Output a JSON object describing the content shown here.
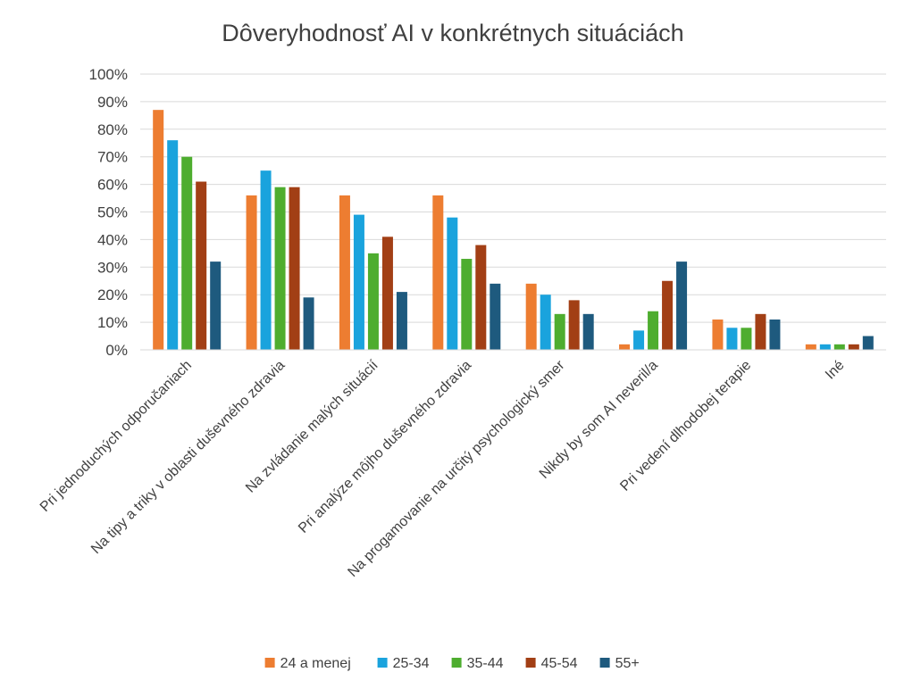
{
  "chart_data": {
    "type": "bar",
    "title": "Dôveryhodnosť AI v konkrétnych situáciách",
    "ylim": [
      0,
      100
    ],
    "y_ticks": [
      "0%",
      "10%",
      "20%",
      "30%",
      "40%",
      "50%",
      "60%",
      "70%",
      "80%",
      "90%",
      "100%"
    ],
    "grid": true,
    "legend_position": "bottom",
    "categories": [
      "Pri jednoduchých odporučaniach",
      "Na tipy a triky v oblasti duševného zdravia",
      "Na zvládanie malých situácií",
      "Pri analýze môjho duševného zdravia",
      "Na progamovanie na určitý psychologický smer",
      "Nikdy by som AI neveril/a",
      "Pri vedení dlhodobej terapie",
      "Iné"
    ],
    "series": [
      {
        "name": "24 a menej",
        "color": "#ED7D31",
        "values": [
          87,
          56,
          56,
          56,
          24,
          2,
          11,
          2
        ]
      },
      {
        "name": "25-34",
        "color": "#1AA3DD",
        "values": [
          76,
          65,
          49,
          48,
          20,
          7,
          8,
          2
        ]
      },
      {
        "name": "35-44",
        "color": "#4EAD2F",
        "values": [
          70,
          59,
          35,
          33,
          13,
          14,
          8,
          2
        ]
      },
      {
        "name": "45-54",
        "color": "#A23F15",
        "values": [
          61,
          59,
          41,
          38,
          18,
          25,
          13,
          2
        ]
      },
      {
        "name": "55+",
        "color": "#1E5A7E",
        "values": [
          32,
          19,
          21,
          24,
          13,
          32,
          11,
          5
        ]
      }
    ],
    "colors": {
      "grid": "#D9D9D9",
      "text": "#404040"
    }
  }
}
